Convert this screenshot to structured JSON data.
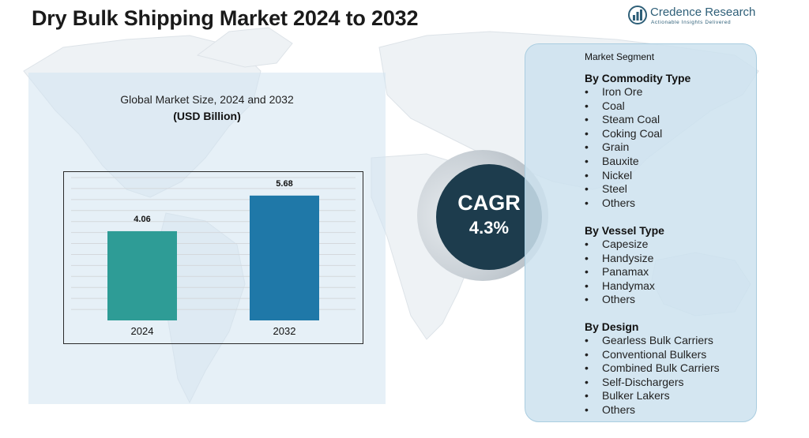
{
  "title": "Dry Bulk Shipping Market 2024  to 2032",
  "logo": {
    "name": "Credence Research",
    "tagline": "Actionable Insights Delivered",
    "icon": "bar-chart-icon"
  },
  "chart_panel": {
    "title": "Global Market Size, 2024 and 2032",
    "subtitle": "(USD Billion)"
  },
  "chart_data": {
    "type": "bar",
    "categories": [
      "2024",
      "2032"
    ],
    "values": [
      4.06,
      5.68
    ],
    "value_labels": [
      "4.06",
      "5.68"
    ],
    "colors": [
      "#2e9c96",
      "#1f78a8"
    ],
    "title": "Global Market Size, 2024 and 2032",
    "ylabel": "(USD Billion)",
    "ylim": [
      0,
      6.5
    ],
    "grid": true
  },
  "cagr": {
    "label": "CAGR",
    "value": "4.3%"
  },
  "segments": {
    "heading": "Market Segment",
    "groups": [
      {
        "title": "By Commodity Type",
        "items": [
          "Iron Ore",
          "Coal",
          "Steam Coal",
          "Coking Coal",
          "Grain",
          "Bauxite",
          "Nickel",
          "Steel",
          "Others"
        ]
      },
      {
        "title": "By Vessel Type",
        "items": [
          "Capesize",
          "Handysize",
          "Panamax",
          "Handymax",
          "Others"
        ]
      },
      {
        "title": "By Design",
        "items": [
          "Gearless Bulk Carriers",
          "Conventional Bulkers",
          "Combined Bulk Carriers",
          "Self-Dischargers",
          "Bulker Lakers",
          "Others"
        ]
      }
    ],
    "bullet": "•"
  },
  "colors": {
    "title": "#1a1a1a",
    "cagr_circle": "#1d3c4d",
    "panel": "#d2e4f0",
    "brand": "#2e5f78"
  }
}
